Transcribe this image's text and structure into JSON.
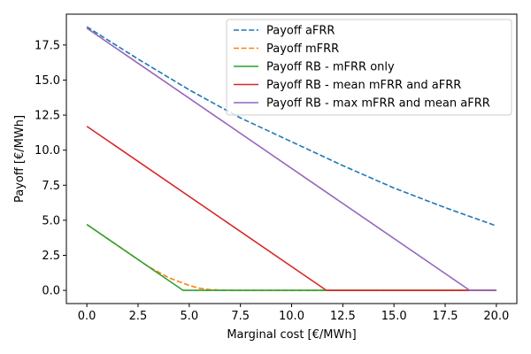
{
  "chart_data": {
    "type": "line",
    "xlabel": "Marginal cost [€/MWh]",
    "ylabel": "Payoff [€/MWh]",
    "xlim": [
      -1.0,
      21.0
    ],
    "ylim": [
      -0.94,
      19.7
    ],
    "xticks": [
      0.0,
      2.5,
      5.0,
      7.5,
      10.0,
      12.5,
      15.0,
      17.5,
      20.0
    ],
    "xtick_labels": [
      "0.0",
      "2.5",
      "5.0",
      "7.5",
      "10.0",
      "12.5",
      "15.0",
      "17.5",
      "20.0"
    ],
    "yticks": [
      0.0,
      2.5,
      5.0,
      7.5,
      10.0,
      12.5,
      15.0,
      17.5
    ],
    "ytick_labels": [
      "0.0",
      "2.5",
      "5.0",
      "7.5",
      "10.0",
      "12.5",
      "15.0",
      "17.5"
    ],
    "grid": false,
    "legend_position": "top-right",
    "series": [
      {
        "name": "Payoff aFRR",
        "color": "#1f77b4",
        "dash": "dashed",
        "x": [
          0,
          2.5,
          5,
          7.5,
          10,
          12.5,
          15,
          17.5,
          20
        ],
        "y": [
          18.8,
          16.5,
          14.3,
          12.3,
          10.6,
          8.9,
          7.3,
          5.9,
          4.6
        ]
      },
      {
        "name": "Payoff mFRR",
        "color": "#ff7f0e",
        "dash": "dashed",
        "x": [
          0,
          1,
          2,
          3,
          4,
          5,
          5.5,
          6,
          7,
          20
        ],
        "y": [
          4.7,
          3.7,
          2.7,
          1.7,
          0.9,
          0.35,
          0.15,
          0.05,
          0.0,
          0.0
        ]
      },
      {
        "name": "Payoff RB - mFRR only",
        "color": "#2ca02c",
        "dash": "solid",
        "x": [
          0,
          4.7,
          20
        ],
        "y": [
          4.7,
          0.0,
          0.0
        ]
      },
      {
        "name": "Payoff RB - mean mFRR and aFRR",
        "color": "#d62728",
        "dash": "solid",
        "x": [
          0,
          11.7,
          20
        ],
        "y": [
          11.7,
          0.0,
          0.0
        ]
      },
      {
        "name": "Payoff RB - max mFRR and mean aFRR",
        "color": "#9467bd",
        "dash": "solid",
        "x": [
          0,
          18.7,
          20
        ],
        "y": [
          18.7,
          0.0,
          0.0
        ]
      }
    ]
  }
}
